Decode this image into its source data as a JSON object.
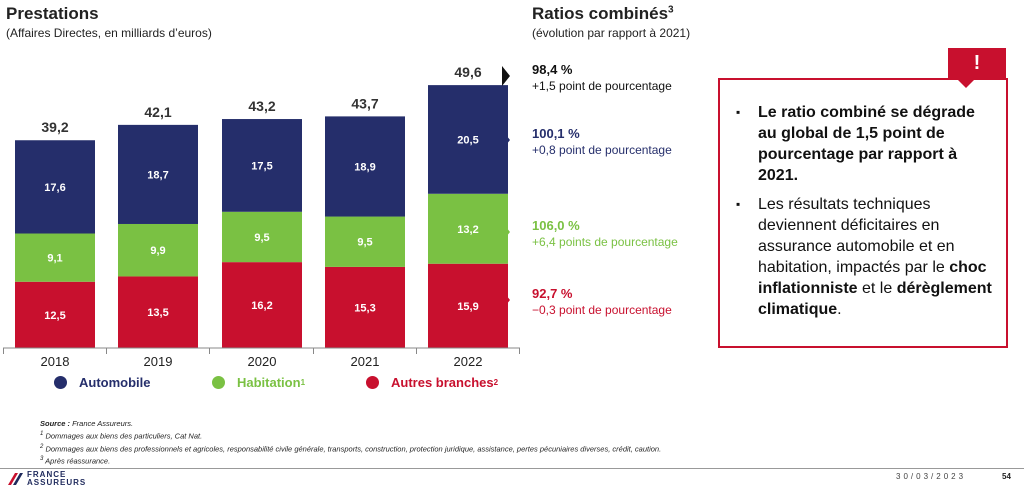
{
  "left_panel": {
    "title": "Prestations",
    "subtitle": "(Affaires Directes, en milliards d’euros)"
  },
  "right_panel": {
    "title": "Ratios combinés",
    "title_sup": "3",
    "subtitle": "(évolution par rapport à 2021)"
  },
  "chart_data": {
    "type": "bar",
    "stacked": true,
    "categories": [
      "2018",
      "2019",
      "2020",
      "2021",
      "2022"
    ],
    "series": [
      {
        "name": "Autres branches",
        "color": "#c8102e",
        "values": [
          12.5,
          13.5,
          16.2,
          15.3,
          15.9
        ],
        "labels": [
          "12,5",
          "13,5",
          "16,2",
          "15,3",
          "15,9"
        ]
      },
      {
        "name": "Habitation",
        "color": "#7ac143",
        "values": [
          9.1,
          9.9,
          9.5,
          9.5,
          13.2
        ],
        "labels": [
          "9,1",
          "9,9",
          "9,5",
          "9,5",
          "13,2"
        ]
      },
      {
        "name": "Automobile",
        "color": "#252e6b",
        "values": [
          17.6,
          18.7,
          17.5,
          18.9,
          20.5
        ],
        "labels": [
          "17,6",
          "18,7",
          "17,5",
          "18,9",
          "20,5"
        ]
      }
    ],
    "totals": [
      "39,2",
      "42,1",
      "43,2",
      "43,7",
      "49,6"
    ],
    "ylim": [
      0,
      52
    ]
  },
  "legend": [
    {
      "label": "Automobile",
      "sup": "",
      "color": "#252e6b"
    },
    {
      "label": "Habitation",
      "sup": "1",
      "color": "#7ac143"
    },
    {
      "label": "Autres branches",
      "sup": "2",
      "color": "#c8102e"
    }
  ],
  "ratios": [
    {
      "value": "98,4 %",
      "delta": "+1,5 point de pourcentage",
      "color": "#111111",
      "level": 1.0
    },
    {
      "value": "100,1 %",
      "delta": "+0,8 point de pourcentage",
      "color": "#252e6b",
      "level": 0.0
    },
    {
      "value": "106,0 %",
      "delta": "+6,4 points de pourcentage",
      "color": "#7ac143",
      "level": 0.0
    },
    {
      "value": "92,7 %",
      "delta": "−0,3 point de pourcentage",
      "color": "#c8102e",
      "level": 0.0
    }
  ],
  "alert": {
    "icon": "!",
    "bullet1": "Le ratio combiné se dégrade au global de 1,5 point de pourcentage par rapport à 2021.",
    "bullet2_a": "Les résultats techniques deviennent déficitaires en assurance automobile et en habitation, impactés par le ",
    "bullet2_b": "choc inflationniste",
    "bullet2_c": " et le ",
    "bullet2_d": "dérèglement climatique",
    "bullet2_e": "."
  },
  "footnotes": {
    "source_label": "Source :",
    "source": " France Assureurs.",
    "n1": "Dommages aux biens des particuliers, Cat Nat.",
    "n2": "Dommages aux biens des professionnels et agricoles, responsabilité civile générale, transports, construction, protection juridique, assistance, pertes pécuniaires diverses, crédit, caution.",
    "n3": "Après réassurance."
  },
  "footer": {
    "logo_line1": "FRANCE",
    "logo_line2": "ASSUREURS",
    "date": "30/03/2023",
    "page": "54"
  }
}
